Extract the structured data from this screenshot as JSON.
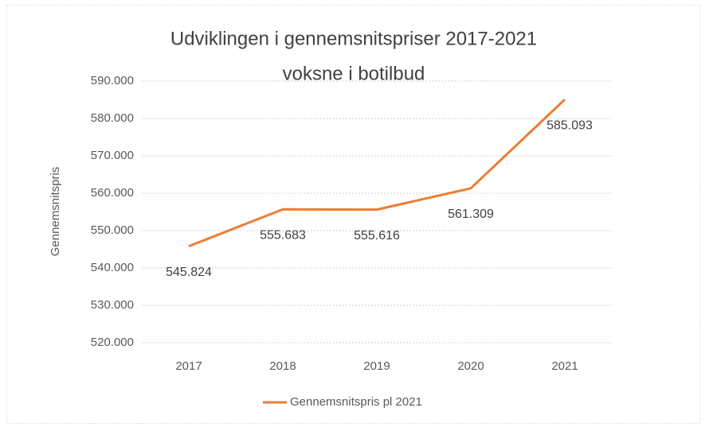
{
  "chart_data": {
    "type": "line",
    "title_lines": [
      "Udviklingen i gennemsnitspriser  2017-2021",
      "voksne i botilbud"
    ],
    "y_label": "Gennemsnitspris",
    "categories": [
      "2017",
      "2018",
      "2019",
      "2020",
      "2021"
    ],
    "series": [
      {
        "name": "Gennemsnitspris pl 2021",
        "color": "#ed7d31",
        "values": [
          545824,
          555683,
          555616,
          561309,
          585093
        ],
        "value_labels": [
          "545.824",
          "555.683",
          "555.616",
          "561.309",
          "585.093"
        ]
      }
    ],
    "ylim": [
      520000,
      590000
    ],
    "yticks": [
      {
        "value": 520000,
        "label": "520.000"
      },
      {
        "value": 530000,
        "label": "530.000"
      },
      {
        "value": 540000,
        "label": "540.000"
      },
      {
        "value": 550000,
        "label": "550.000"
      },
      {
        "value": 560000,
        "label": "560.000"
      },
      {
        "value": 570000,
        "label": "570.000"
      },
      {
        "value": 580000,
        "label": "580.000"
      },
      {
        "value": 590000,
        "label": "590.000"
      }
    ],
    "grid": true,
    "legend": "bottom"
  }
}
